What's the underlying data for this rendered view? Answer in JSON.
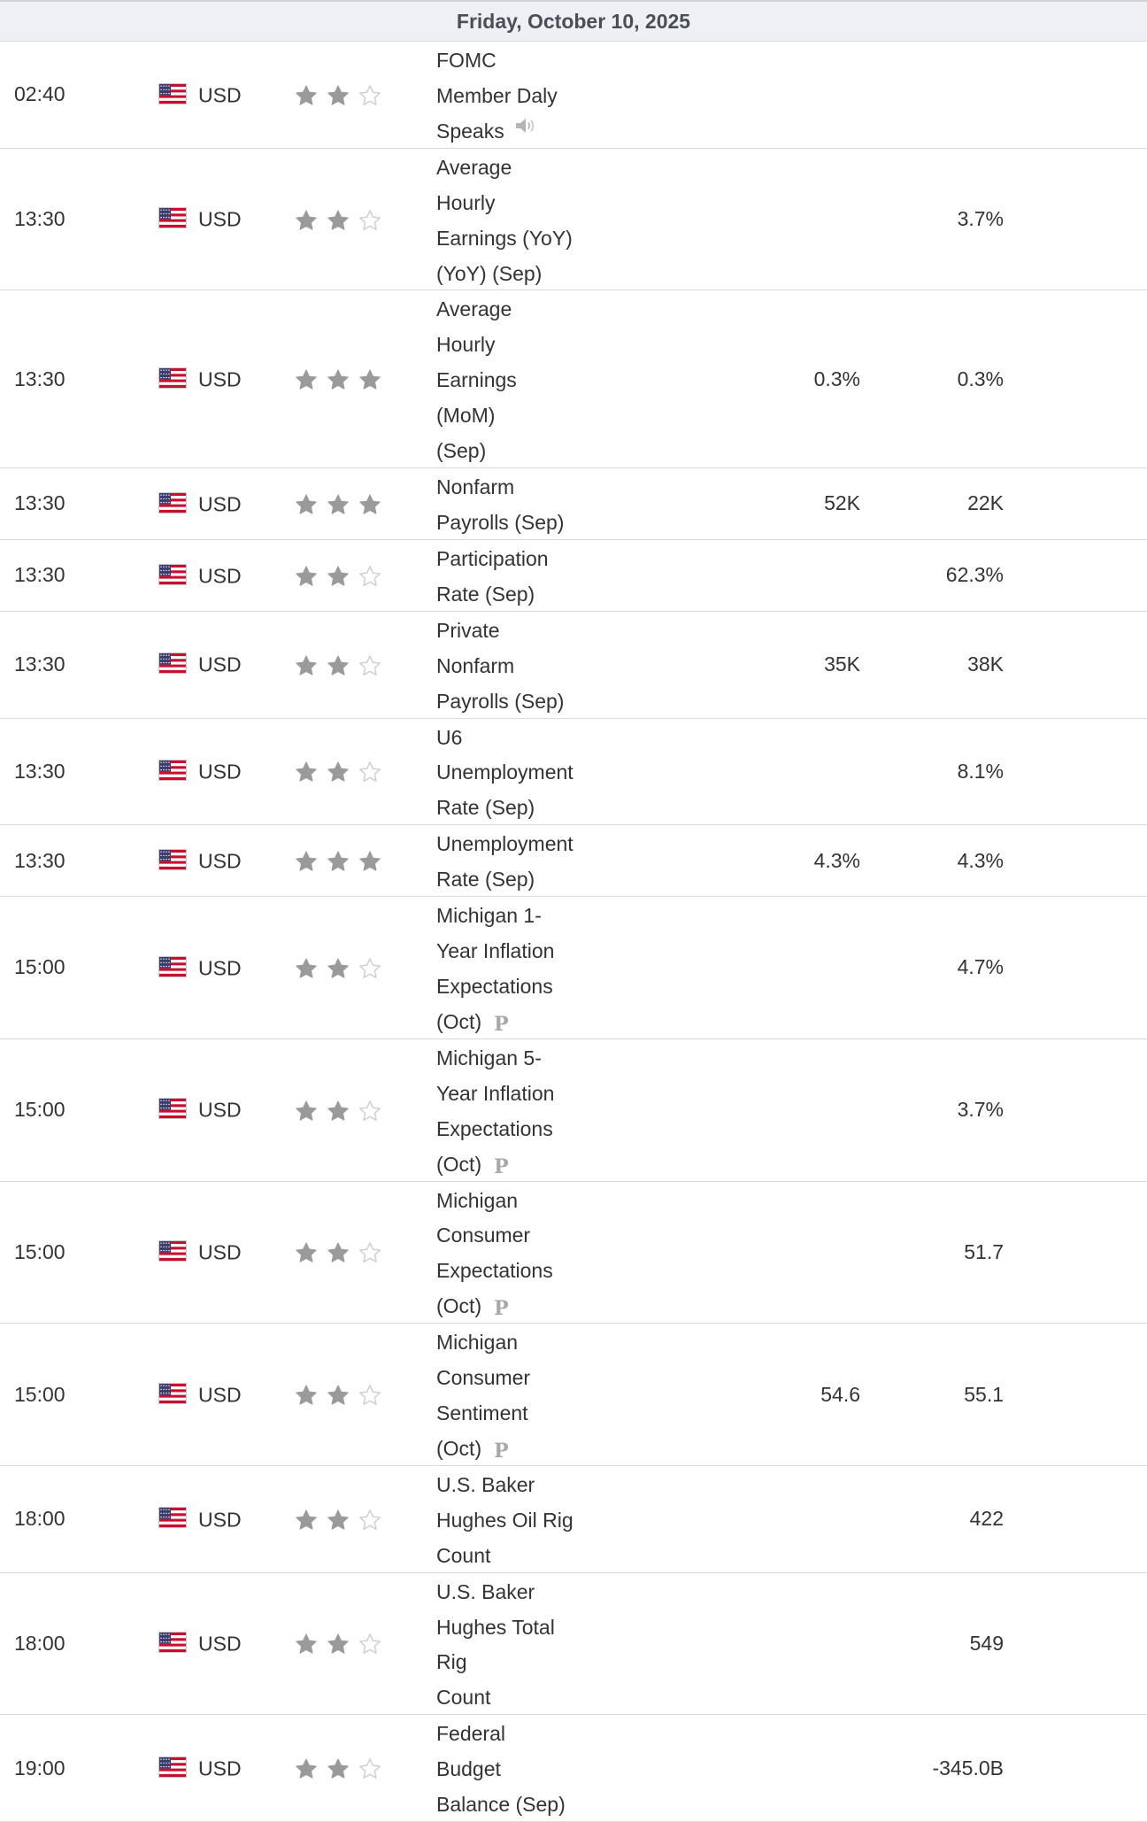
{
  "date_header": "Friday, October 10, 2025",
  "events": [
    {
      "time": "02:40",
      "currency": "USD",
      "stars": 2,
      "event_lines": [
        "FOMC Member Daly Speaks"
      ],
      "icon": "speaker-icon",
      "forecast": "",
      "previous": "",
      "height": 52
    },
    {
      "time": "13:30",
      "currency": "USD",
      "stars": 2,
      "event_lines": [
        "Average Hourly Earnings (YoY)",
        "(YoY) (Sep)"
      ],
      "icon": "",
      "forecast": "",
      "previous": "3.7%",
      "height": 86
    },
    {
      "time": "13:30",
      "currency": "USD",
      "stars": 3,
      "event_lines": [
        "Average Hourly Earnings (MoM)",
        "(Sep)"
      ],
      "icon": "",
      "forecast": "0.3%",
      "previous": "0.3%",
      "height": 86
    },
    {
      "time": "13:30",
      "currency": "USD",
      "stars": 3,
      "event_lines": [
        "Nonfarm Payrolls (Sep)"
      ],
      "icon": "",
      "forecast": "52K",
      "previous": "22K",
      "height": 52
    },
    {
      "time": "13:30",
      "currency": "USD",
      "stars": 2,
      "event_lines": [
        "Participation Rate (Sep)"
      ],
      "icon": "",
      "forecast": "",
      "previous": "62.3%",
      "height": 52
    },
    {
      "time": "13:30",
      "currency": "USD",
      "stars": 2,
      "event_lines": [
        "Private Nonfarm Payrolls (Sep)"
      ],
      "icon": "",
      "forecast": "35K",
      "previous": "38K",
      "height": 52
    },
    {
      "time": "13:30",
      "currency": "USD",
      "stars": 2,
      "event_lines": [
        "U6 Unemployment Rate (Sep)"
      ],
      "icon": "",
      "forecast": "",
      "previous": "8.1%",
      "height": 52
    },
    {
      "time": "13:30",
      "currency": "USD",
      "stars": 3,
      "event_lines": [
        "Unemployment Rate (Sep)"
      ],
      "icon": "",
      "forecast": "4.3%",
      "previous": "4.3%",
      "height": 52
    },
    {
      "time": "15:00",
      "currency": "USD",
      "stars": 2,
      "event_lines": [
        "Michigan 1-Year Inflation",
        "Expectations (Oct)"
      ],
      "icon": "preliminary-icon",
      "forecast": "",
      "previous": "4.7%",
      "height": 86
    },
    {
      "time": "15:00",
      "currency": "USD",
      "stars": 2,
      "event_lines": [
        "Michigan 5-Year Inflation",
        "Expectations (Oct)"
      ],
      "icon": "preliminary-icon",
      "forecast": "",
      "previous": "3.7%",
      "height": 86
    },
    {
      "time": "15:00",
      "currency": "USD",
      "stars": 2,
      "event_lines": [
        "Michigan Consumer",
        "Expectations (Oct)"
      ],
      "icon": "preliminary-icon",
      "forecast": "",
      "previous": "51.7",
      "height": 86
    },
    {
      "time": "15:00",
      "currency": "USD",
      "stars": 2,
      "event_lines": [
        "Michigan Consumer Sentiment",
        "(Oct)"
      ],
      "icon": "preliminary-icon",
      "forecast": "54.6",
      "previous": "55.1",
      "height": 86
    },
    {
      "time": "18:00",
      "currency": "USD",
      "stars": 2,
      "event_lines": [
        "U.S. Baker Hughes Oil Rig",
        "Count"
      ],
      "icon": "",
      "forecast": "",
      "previous": "422",
      "height": 86
    },
    {
      "time": "18:00",
      "currency": "USD",
      "stars": 2,
      "event_lines": [
        "U.S. Baker Hughes Total Rig",
        "Count"
      ],
      "icon": "",
      "forecast": "",
      "previous": "549",
      "height": 86
    },
    {
      "time": "19:00",
      "currency": "USD",
      "stars": 2,
      "event_lines": [
        "Federal Budget Balance (Sep)"
      ],
      "icon": "",
      "forecast": "",
      "previous": "-345.0B",
      "height": 52
    }
  ],
  "preliminary_label": "P",
  "colors": {
    "star_filled": "#9a9a9a",
    "star_empty": "#cfcfcf",
    "header_bg": "#eef0f3",
    "border": "#d6d9dd"
  }
}
